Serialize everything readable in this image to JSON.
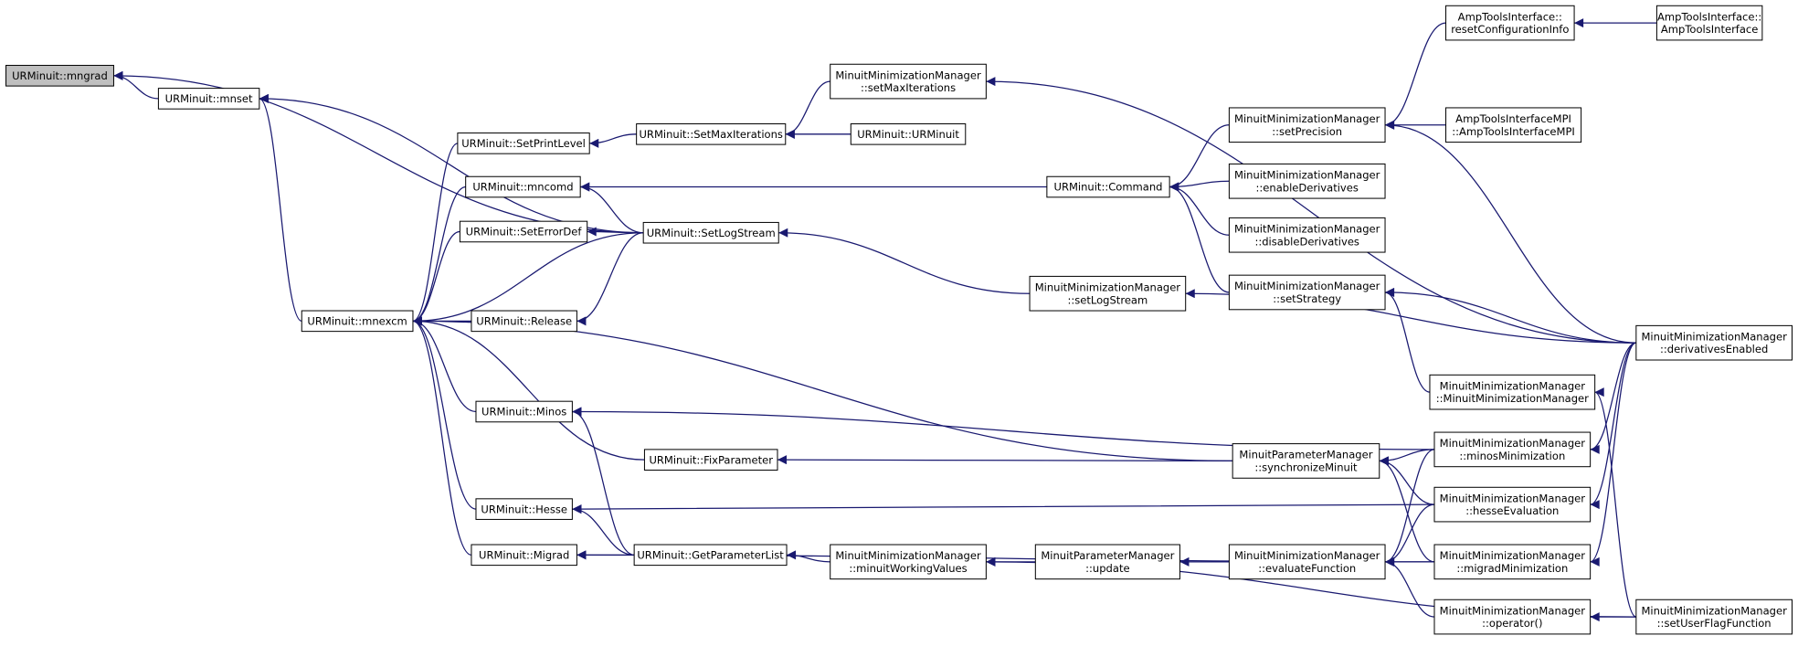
{
  "nodes": [
    {
      "lines": [
        "URMinuit::mngrad"
      ]
    },
    {
      "lines": [
        "URMinuit::mnset"
      ]
    },
    {
      "lines": [
        "URMinuit::mnexcm"
      ]
    },
    {
      "lines": [
        "URMinuit::SetPrintLevel"
      ]
    },
    {
      "lines": [
        "URMinuit::mncomd"
      ]
    },
    {
      "lines": [
        "URMinuit::SetErrorDef"
      ]
    },
    {
      "lines": [
        "URMinuit::Release"
      ]
    },
    {
      "lines": [
        "URMinuit::Minos"
      ]
    },
    {
      "lines": [
        "URMinuit::Hesse"
      ]
    },
    {
      "lines": [
        "URMinuit::Migrad"
      ]
    },
    {
      "lines": [
        "URMinuit::SetMaxIterations"
      ]
    },
    {
      "lines": [
        "URMinuit::SetLogStream"
      ]
    },
    {
      "lines": [
        "URMinuit::FixParameter"
      ]
    },
    {
      "lines": [
        "URMinuit::GetParameterList"
      ]
    },
    {
      "lines": [
        "MinuitMinimizationManager",
        "::setMaxIterations"
      ]
    },
    {
      "lines": [
        "URMinuit::URMinuit"
      ]
    },
    {
      "lines": [
        "MinuitMinimizationManager",
        "::minuitWorkingValues"
      ]
    },
    {
      "lines": [
        "URMinuit::Command"
      ]
    },
    {
      "lines": [
        "MinuitMinimizationManager",
        "::setLogStream"
      ]
    },
    {
      "lines": [
        "MinuitParameterManager",
        "::update"
      ]
    },
    {
      "lines": [
        "MinuitParameterManager",
        "::synchronizeMinuit"
      ]
    },
    {
      "lines": [
        "MinuitMinimizationManager",
        "::setPrecision"
      ]
    },
    {
      "lines": [
        "MinuitMinimizationManager",
        "::enableDerivatives"
      ]
    },
    {
      "lines": [
        "MinuitMinimizationManager",
        "::disableDerivatives"
      ]
    },
    {
      "lines": [
        "MinuitMinimizationManager",
        "::setStrategy"
      ]
    },
    {
      "lines": [
        "MinuitMinimizationManager",
        "::evaluateFunction"
      ]
    },
    {
      "lines": [
        "AmpToolsInterface::",
        "resetConfigurationInfo"
      ]
    },
    {
      "lines": [
        "AmpToolsInterfaceMPI",
        "::AmpToolsInterfaceMPI"
      ]
    },
    {
      "lines": [
        "MinuitMinimizationManager",
        "::MinuitMinimizationManager"
      ]
    },
    {
      "lines": [
        "MinuitMinimizationManager",
        "::minosMinimization"
      ]
    },
    {
      "lines": [
        "MinuitMinimizationManager",
        "::hesseEvaluation"
      ]
    },
    {
      "lines": [
        "MinuitMinimizationManager",
        "::migradMinimization"
      ]
    },
    {
      "lines": [
        "MinuitMinimizationManager",
        "::operator()"
      ]
    },
    {
      "lines": [
        "AmpToolsInterface::",
        "AmpToolsInterface"
      ]
    },
    {
      "lines": [
        "MinuitMinimizationManager",
        "::derivativesEnabled"
      ]
    },
    {
      "lines": [
        "MinuitMinimizationManager",
        "::setUserFlagFunction"
      ]
    }
  ]
}
